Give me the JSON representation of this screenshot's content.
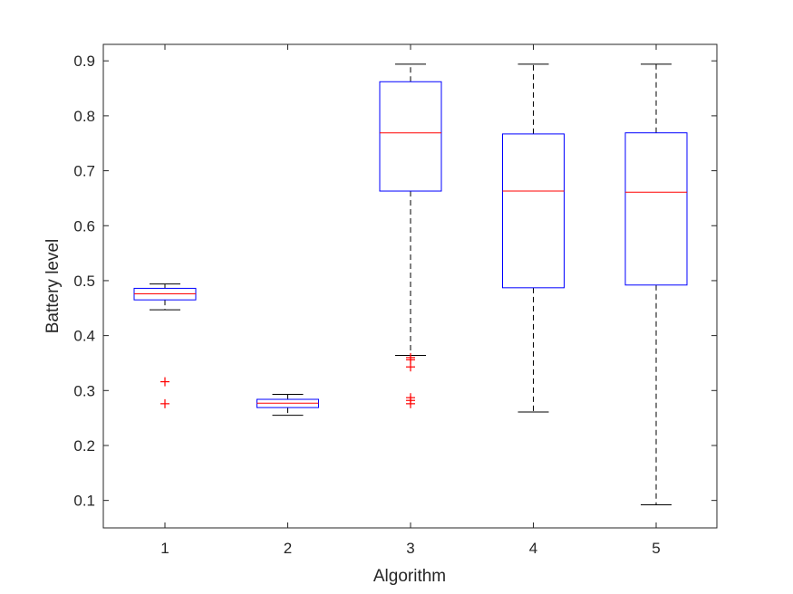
{
  "chart_data": {
    "type": "boxplot",
    "xlabel": "Algorithm",
    "ylabel": "Battery level",
    "categories": [
      "1",
      "2",
      "3",
      "4",
      "5"
    ],
    "ylim": [
      0.05,
      0.93
    ],
    "yticks": [
      0.1,
      0.2,
      0.3,
      0.4,
      0.5,
      0.6,
      0.7,
      0.8,
      0.9
    ],
    "ytick_labels": [
      "0.1",
      "0.2",
      "0.3",
      "0.4",
      "0.5",
      "0.6",
      "0.7",
      "0.8",
      "0.9"
    ],
    "grid": false,
    "boxes": [
      {
        "category": "1",
        "whisker_low": 0.447,
        "q1": 0.465,
        "median": 0.476,
        "q3": 0.486,
        "whisker_high": 0.494,
        "outliers": [
          0.316,
          0.276
        ]
      },
      {
        "category": "2",
        "whisker_low": 0.255,
        "q1": 0.269,
        "median": 0.277,
        "q3": 0.284,
        "whisker_high": 0.293,
        "outliers": []
      },
      {
        "category": "3",
        "whisker_low": 0.364,
        "q1": 0.663,
        "median": 0.769,
        "q3": 0.862,
        "whisker_high": 0.894,
        "outliers": [
          0.36,
          0.356,
          0.343,
          0.287,
          0.282,
          0.276
        ]
      },
      {
        "category": "4",
        "whisker_low": 0.261,
        "q1": 0.487,
        "median": 0.663,
        "q3": 0.767,
        "whisker_high": 0.894,
        "outliers": []
      },
      {
        "category": "5",
        "whisker_low": 0.092,
        "q1": 0.492,
        "median": 0.661,
        "q3": 0.769,
        "whisker_high": 0.894,
        "outliers": []
      }
    ],
    "colors": {
      "box": "#0000ff",
      "median": "#ff0000",
      "whisker": "#000000",
      "outlier": "#ff0000",
      "axis": "#262626"
    }
  }
}
